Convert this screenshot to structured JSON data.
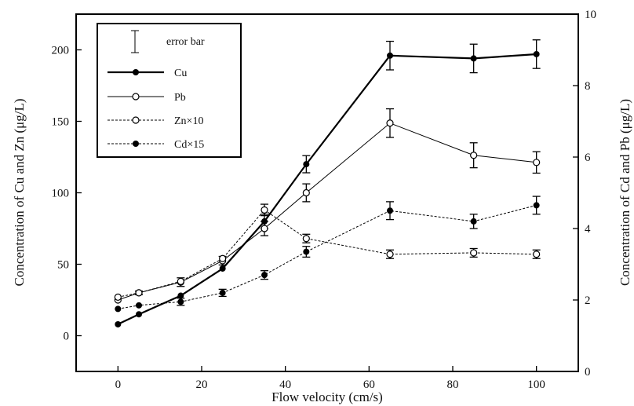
{
  "chart_data": {
    "type": "line",
    "title": "",
    "xlabel": "Flow velocity (cm/s)",
    "ylabel": "Concentration of Cu and Zn (μg/L)",
    "y2label": "Concentration of Cd and Pb (μg/L)",
    "xlim": [
      -10,
      110
    ],
    "ylim": [
      -25,
      225
    ],
    "y2lim": [
      0,
      10
    ],
    "xticks": [
      0,
      20,
      40,
      60,
      80,
      100
    ],
    "yticks": [
      0,
      50,
      100,
      150,
      200
    ],
    "y2ticks": [
      0,
      2,
      4,
      6,
      8,
      10
    ],
    "grid": false,
    "legend": {
      "position": "top-left",
      "error_bar_label": "error bar",
      "entries": [
        "Cu",
        "Pb",
        "Zn×10",
        "Cd×15"
      ]
    },
    "series": [
      {
        "name": "Cu",
        "axis": "left",
        "marker": "filled",
        "line": "solid-thick",
        "points": [
          {
            "x": 0,
            "y": 8,
            "err": 0
          },
          {
            "x": 5,
            "y": 15,
            "err": 0
          },
          {
            "x": 15,
            "y": 28,
            "err": 0
          },
          {
            "x": 25,
            "y": 47,
            "err": 0
          },
          {
            "x": 35,
            "y": 80,
            "err": 5
          },
          {
            "x": 45,
            "y": 120,
            "err": 6
          },
          {
            "x": 65,
            "y": 196,
            "err": 10
          },
          {
            "x": 85,
            "y": 194,
            "err": 10
          },
          {
            "x": 100,
            "y": 197,
            "err": 10
          }
        ]
      },
      {
        "name": "Pb",
        "axis": "right",
        "marker": "open",
        "line": "solid-thin",
        "points": [
          {
            "x": 0,
            "y": 2.0,
            "err": 0
          },
          {
            "x": 5,
            "y": 2.2,
            "err": 0.05
          },
          {
            "x": 15,
            "y": 2.5,
            "err": 0.12
          },
          {
            "x": 25,
            "y": 3.1,
            "err": 0.12
          },
          {
            "x": 35,
            "y": 4.0,
            "err": 0.2
          },
          {
            "x": 45,
            "y": 5.0,
            "err": 0.25
          },
          {
            "x": 65,
            "y": 6.95,
            "err": 0.4
          },
          {
            "x": 85,
            "y": 6.05,
            "err": 0.35
          },
          {
            "x": 100,
            "y": 5.85,
            "err": 0.3
          }
        ]
      },
      {
        "name": "Zn×10",
        "axis": "left",
        "marker": "open",
        "line": "dashed",
        "points": [
          {
            "x": 0,
            "y": 27,
            "err": 0
          },
          {
            "x": 5,
            "y": 30,
            "err": 0
          },
          {
            "x": 15,
            "y": 38,
            "err": 0
          },
          {
            "x": 25,
            "y": 54,
            "err": 0
          },
          {
            "x": 35,
            "y": 88,
            "err": 4
          },
          {
            "x": 45,
            "y": 68,
            "err": 3
          },
          {
            "x": 65,
            "y": 57,
            "err": 3
          },
          {
            "x": 85,
            "y": 58,
            "err": 3
          },
          {
            "x": 100,
            "y": 57,
            "err": 3
          }
        ]
      },
      {
        "name": "Cd×15",
        "axis": "right",
        "marker": "filled",
        "line": "dashed",
        "points": [
          {
            "x": 0,
            "y": 1.75,
            "err": 0
          },
          {
            "x": 5,
            "y": 1.85,
            "err": 0
          },
          {
            "x": 15,
            "y": 1.95,
            "err": 0.1
          },
          {
            "x": 25,
            "y": 2.2,
            "err": 0.1
          },
          {
            "x": 35,
            "y": 2.7,
            "err": 0.12
          },
          {
            "x": 45,
            "y": 3.35,
            "err": 0.15
          },
          {
            "x": 65,
            "y": 4.5,
            "err": 0.25
          },
          {
            "x": 85,
            "y": 4.2,
            "err": 0.2
          },
          {
            "x": 100,
            "y": 4.65,
            "err": 0.25
          }
        ]
      }
    ]
  }
}
